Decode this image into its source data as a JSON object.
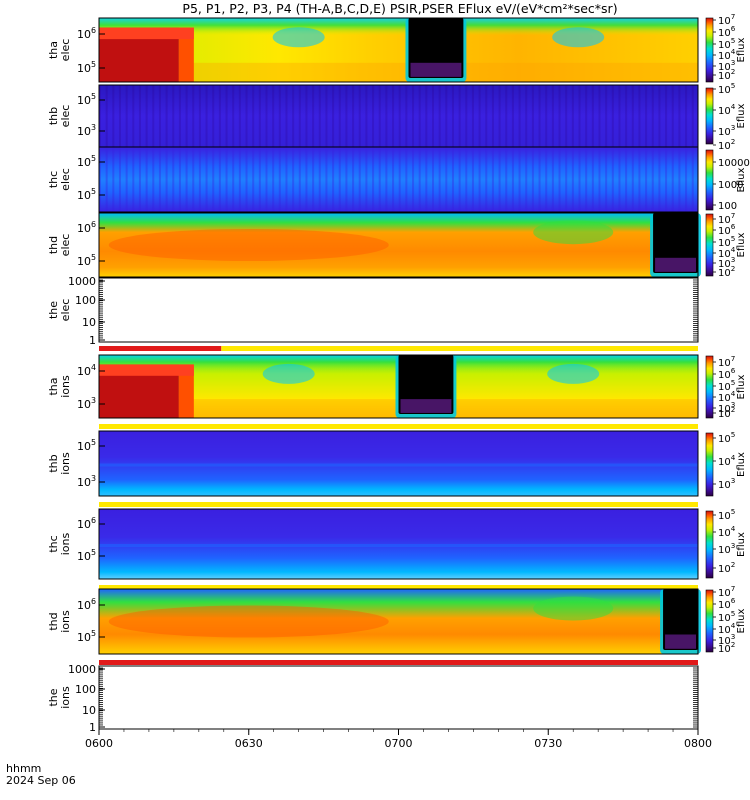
{
  "title": "P5, P1, P2, P3, P4 (TH-A,B,C,D,E) PSIR,PSER EFlux eV/(eV*cm²*sec*sr)",
  "time_axis": {
    "ticks": [
      "0600",
      "0630",
      "0700",
      "0730",
      "0800"
    ],
    "label_line1": "hhmm",
    "label_line2": "2024 Sep 06",
    "range_minutes": [
      0,
      120
    ]
  },
  "colorbar_label": "Eflux",
  "colors": {
    "spectrum": [
      "#2a0040",
      "#3b0a8c",
      "#3a20e0",
      "#1f63ff",
      "#00b8ff",
      "#00e0d0",
      "#30e040",
      "#c8f000",
      "#ffe800",
      "#ffa000",
      "#ff5000",
      "#d01010"
    ],
    "flag_red": "#e11a1a",
    "flag_yellow": "#ffe800"
  },
  "chart_data": [
    {
      "type": "heatmap",
      "panel": "tha-elec",
      "ylabel": [
        "tha",
        "elec"
      ],
      "yticks": [
        {
          "base": "10",
          "exp": "6"
        },
        {
          "base": "10",
          "exp": "5"
        }
      ],
      "colorbar_ticks": [
        {
          "base": "10",
          "exp": "7"
        },
        {
          "base": "10",
          "exp": "6"
        },
        {
          "base": "10",
          "exp": "5"
        },
        {
          "base": "10",
          "exp": "4"
        },
        {
          "base": "10",
          "exp": "3"
        },
        {
          "base": "10",
          "exp": "2"
        }
      ],
      "features": [
        {
          "kind": "gap",
          "t_start": 62,
          "t_end": 73
        },
        {
          "kind": "saturated-block",
          "t_start": 0,
          "t_end": 16
        }
      ]
    },
    {
      "type": "heatmap",
      "panel": "thb-elec",
      "ylabel": [
        "thb",
        "elec"
      ],
      "yticks": [
        {
          "base": "10",
          "exp": "5"
        },
        {
          "base": "10",
          "exp": "3"
        }
      ],
      "colorbar_ticks": [
        {
          "base": "10",
          "exp": "5"
        },
        {
          "base": "10",
          "exp": "4"
        },
        {
          "base": "10",
          "exp": "3"
        },
        {
          "base": "10",
          "exp": "2"
        }
      ]
    },
    {
      "type": "heatmap",
      "panel": "thc-elec",
      "ylabel": [
        "thc",
        "elec"
      ],
      "yticks": [
        {
          "base": "10",
          "exp": "5"
        },
        {
          "base": "10",
          "exp": "5"
        }
      ],
      "colorbar_ticks": [
        {
          "base": "10000",
          "exp": ""
        },
        {
          "base": "1000",
          "exp": ""
        },
        {
          "base": "100",
          "exp": ""
        }
      ]
    },
    {
      "type": "heatmap",
      "panel": "thd-elec",
      "ylabel": [
        "thd",
        "elec"
      ],
      "yticks": [
        {
          "base": "10",
          "exp": "6"
        },
        {
          "base": "10",
          "exp": "5"
        }
      ],
      "colorbar_ticks": [
        {
          "base": "10",
          "exp": "7"
        },
        {
          "base": "10",
          "exp": "6"
        },
        {
          "base": "10",
          "exp": "5"
        },
        {
          "base": "10",
          "exp": "4"
        },
        {
          "base": "10",
          "exp": "3"
        },
        {
          "base": "10",
          "exp": "2"
        }
      ],
      "features": [
        {
          "kind": "gap",
          "t_start": 111,
          "t_end": 120
        }
      ]
    },
    {
      "type": "heatmap",
      "panel": "the-elec",
      "ylabel": [
        "the",
        "elec"
      ],
      "yticks": [
        {
          "base": "1000",
          "exp": ""
        },
        {
          "base": "100",
          "exp": ""
        },
        {
          "base": "10",
          "exp": ""
        },
        {
          "base": "1",
          "exp": ""
        }
      ],
      "empty": true,
      "flag_bar": [
        {
          "color": "red",
          "t_start": 0,
          "t_end": 24.5
        },
        {
          "color": "yellow",
          "t_start": 24.5,
          "t_end": 120
        }
      ]
    },
    {
      "type": "heatmap",
      "panel": "tha-ions",
      "ylabel": [
        "tha",
        "ions"
      ],
      "yticks": [
        {
          "base": "10",
          "exp": "4"
        },
        {
          "base": "10",
          "exp": "3"
        }
      ],
      "colorbar_ticks": [
        {
          "base": "10",
          "exp": "7"
        },
        {
          "base": "10",
          "exp": "6"
        },
        {
          "base": "10",
          "exp": "5"
        },
        {
          "base": "10",
          "exp": "4"
        },
        {
          "base": "10",
          "exp": "3"
        },
        {
          "base": "10",
          "exp": "2"
        }
      ],
      "features": [
        {
          "kind": "gap",
          "t_start": 60,
          "t_end": 71
        },
        {
          "kind": "saturated-block",
          "t_start": 0,
          "t_end": 16
        }
      ],
      "flag_bar": [
        {
          "color": "yellow",
          "t_start": 0,
          "t_end": 120
        }
      ]
    },
    {
      "type": "heatmap",
      "panel": "thb-ions",
      "ylabel": [
        "thb",
        "ions"
      ],
      "yticks": [
        {
          "base": "10",
          "exp": "5"
        },
        {
          "base": "10",
          "exp": "3"
        }
      ],
      "colorbar_ticks": [
        {
          "base": "10",
          "exp": "5"
        },
        {
          "base": "10",
          "exp": "4"
        },
        {
          "base": "10",
          "exp": "3"
        }
      ],
      "flag_bar": [
        {
          "color": "yellow",
          "t_start": 0,
          "t_end": 120
        }
      ]
    },
    {
      "type": "heatmap",
      "panel": "thc-ions",
      "ylabel": [
        "thc",
        "ions"
      ],
      "yticks": [
        {
          "base": "10",
          "exp": "6"
        },
        {
          "base": "10",
          "exp": "5"
        }
      ],
      "colorbar_ticks": [
        {
          "base": "10",
          "exp": "5"
        },
        {
          "base": "10",
          "exp": "4"
        },
        {
          "base": "10",
          "exp": "3"
        },
        {
          "base": "10",
          "exp": "2"
        }
      ],
      "flag_bar": [
        {
          "color": "yellow",
          "t_start": 0,
          "t_end": 120
        }
      ]
    },
    {
      "type": "heatmap",
      "panel": "thd-ions",
      "ylabel": [
        "thd",
        "ions"
      ],
      "yticks": [
        {
          "base": "10",
          "exp": "6"
        },
        {
          "base": "10",
          "exp": "5"
        }
      ],
      "colorbar_ticks": [
        {
          "base": "10",
          "exp": "7"
        },
        {
          "base": "10",
          "exp": "6"
        },
        {
          "base": "10",
          "exp": "5"
        },
        {
          "base": "10",
          "exp": "4"
        },
        {
          "base": "10",
          "exp": "3"
        },
        {
          "base": "10",
          "exp": "2"
        }
      ],
      "features": [
        {
          "kind": "gap",
          "t_start": 113,
          "t_end": 120
        }
      ],
      "flag_bar": [
        {
          "color": "red",
          "t_start": 0,
          "t_end": 120
        }
      ]
    },
    {
      "type": "heatmap",
      "panel": "the-ions",
      "ylabel": [
        "the",
        "ions"
      ],
      "yticks": [
        {
          "base": "1000",
          "exp": ""
        },
        {
          "base": "100",
          "exp": ""
        },
        {
          "base": "10",
          "exp": ""
        },
        {
          "base": "1",
          "exp": ""
        }
      ],
      "empty": true
    }
  ]
}
